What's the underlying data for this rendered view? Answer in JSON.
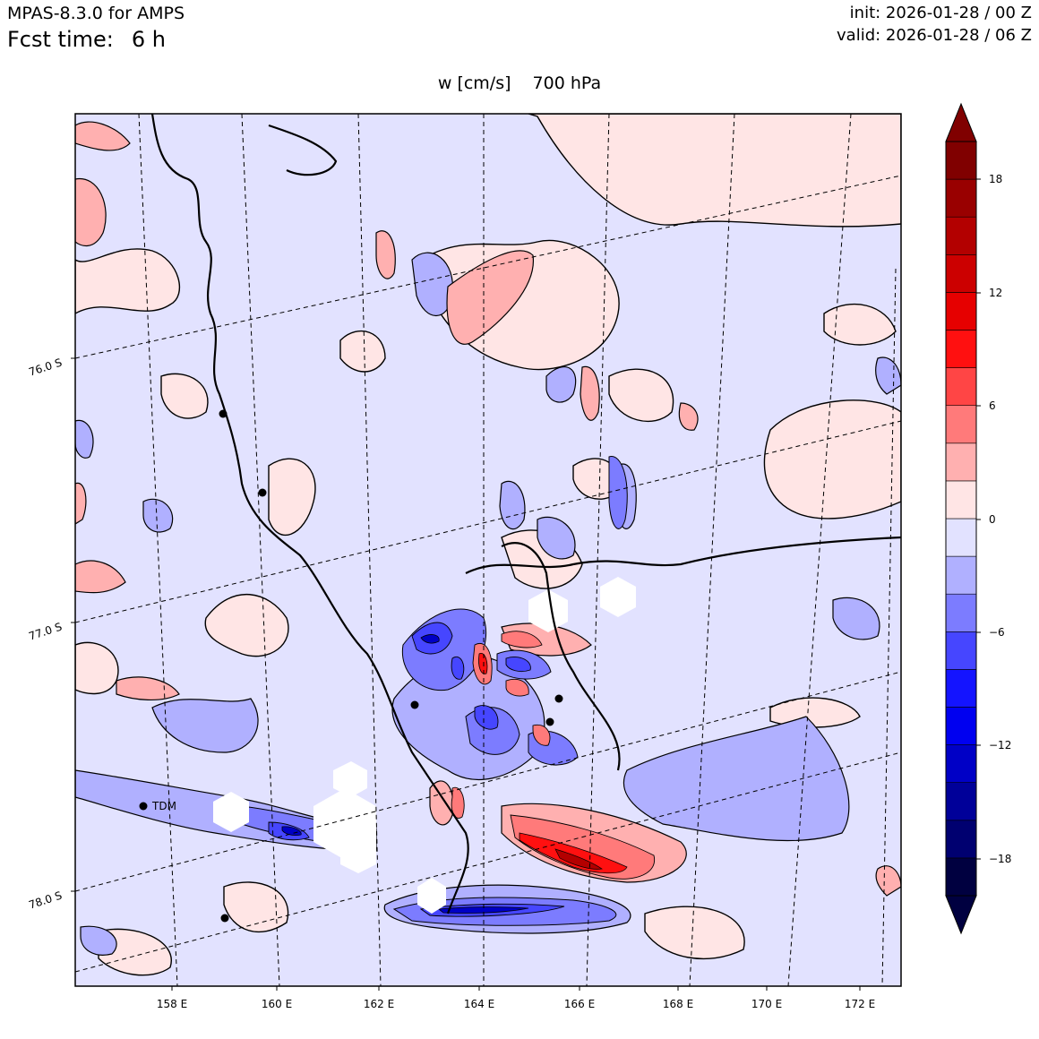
{
  "header": {
    "model": "MPAS-8.3.0 for AMPS",
    "fcst_label": "Fcst time:",
    "fcst_value": "6 h",
    "init": "init: 2026-01-28 / 00 Z",
    "valid": "valid: 2026-01-28 / 06 Z"
  },
  "plot": {
    "variable": "w [cm/s]",
    "level": "700 hPa"
  },
  "map": {
    "lon_labels": [
      "158 E",
      "160 E",
      "162 E",
      "164 E",
      "166 E",
      "168 E",
      "170 E",
      "172 E"
    ],
    "lat_labels": [
      "76.0 S",
      "77.0 S",
      "78.0 S"
    ],
    "stations": [
      {
        "name": "TDM"
      }
    ]
  },
  "colorbar": {
    "tick_labels": [
      "18",
      "12",
      "6",
      "0",
      "−6",
      "−12",
      "−18"
    ],
    "levels": [
      -20,
      -18,
      -16,
      -14,
      -12,
      -10,
      -8,
      -6,
      -4,
      -2,
      0,
      2,
      4,
      6,
      8,
      10,
      12,
      14,
      16,
      18,
      20
    ],
    "colors": [
      "#000040",
      "#000070",
      "#000099",
      "#0000c6",
      "#0000f0",
      "#1414ff",
      "#4646ff",
      "#7c7cff",
      "#b0b0ff",
      "#e2e2ff",
      "#ffe5e5",
      "#ffb0b0",
      "#ff7a7a",
      "#ff4545",
      "#ff1010",
      "#e60000",
      "#cc0000",
      "#b30000",
      "#990000",
      "#800000"
    ],
    "over_color": "#800000",
    "under_color": "#000040"
  }
}
